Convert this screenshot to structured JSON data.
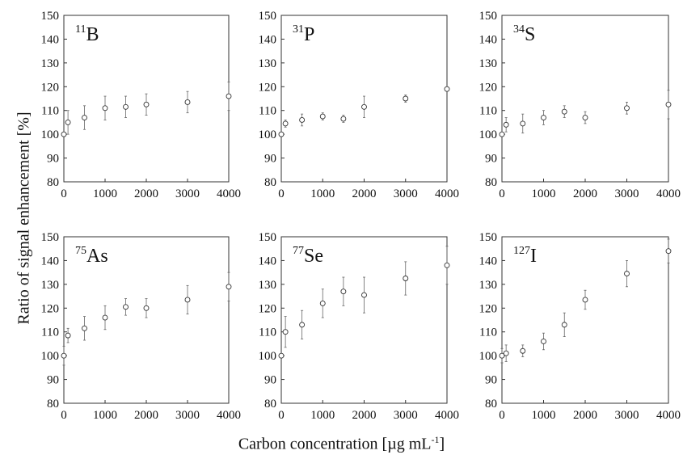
{
  "figure": {
    "ylabel": "Ratio of signal enhancement [%]",
    "xlabel_main": "Carbon concentration [µg mL",
    "xlabel_sup": "-1",
    "xlabel_end": "]"
  },
  "chart_data": [
    {
      "type": "scatter",
      "panel_label": {
        "mass": "11",
        "element": "B"
      },
      "xlim": [
        0,
        4000
      ],
      "ylim": [
        80,
        150
      ],
      "xticks": [
        "0",
        "1000",
        "2000",
        "3000",
        "4000"
      ],
      "yticks": [
        "80",
        "90",
        "100",
        "110",
        "120",
        "130",
        "140",
        "150"
      ],
      "x": [
        0,
        100,
        500,
        1000,
        1500,
        2000,
        3000,
        4000
      ],
      "y": [
        100,
        105,
        107,
        111,
        111.5,
        112.5,
        113.5,
        116
      ],
      "error": [
        0,
        5,
        5,
        5,
        4.5,
        4.5,
        4.5,
        6
      ],
      "grid": false
    },
    {
      "type": "scatter",
      "panel_label": {
        "mass": "31",
        "element": "P"
      },
      "xlim": [
        0,
        4000
      ],
      "ylim": [
        80,
        150
      ],
      "xticks": [
        "0",
        "1000",
        "2000",
        "3000",
        "4000"
      ],
      "yticks": [
        "80",
        "90",
        "100",
        "110",
        "120",
        "130",
        "140",
        "150"
      ],
      "x": [
        0,
        100,
        500,
        1000,
        1500,
        2000,
        3000,
        4000
      ],
      "y": [
        100,
        104.5,
        106,
        107.5,
        106.5,
        111.5,
        115,
        119
      ],
      "error": [
        0,
        1.5,
        2.5,
        1.5,
        1.5,
        4.5,
        1.5,
        0.5
      ],
      "grid": false
    },
    {
      "type": "scatter",
      "panel_label": {
        "mass": "34",
        "element": "S"
      },
      "xlim": [
        0,
        4000
      ],
      "ylim": [
        80,
        150
      ],
      "xticks": [
        "0",
        "1000",
        "2000",
        "3000",
        "4000"
      ],
      "yticks": [
        "80",
        "90",
        "100",
        "110",
        "120",
        "130",
        "140",
        "150"
      ],
      "x": [
        0,
        100,
        500,
        1000,
        1500,
        2000,
        3000,
        4000
      ],
      "y": [
        100,
        104,
        104.5,
        107,
        109.5,
        107,
        111,
        112.5
      ],
      "error": [
        0,
        3,
        4,
        3,
        2.5,
        2.5,
        2.5,
        6
      ],
      "grid": false
    },
    {
      "type": "scatter",
      "panel_label": {
        "mass": "75",
        "element": "As"
      },
      "xlim": [
        0,
        4000
      ],
      "ylim": [
        80,
        150
      ],
      "xticks": [
        "0",
        "1000",
        "2000",
        "3000",
        "4000"
      ],
      "yticks": [
        "80",
        "90",
        "100",
        "110",
        "120",
        "130",
        "140",
        "150"
      ],
      "x": [
        0,
        100,
        500,
        1000,
        1500,
        2000,
        3000,
        4000
      ],
      "y": [
        100,
        108.5,
        111.5,
        116,
        120.5,
        120,
        123.5,
        129
      ],
      "error": [
        4,
        3,
        5,
        5,
        3.5,
        4,
        6,
        6
      ],
      "grid": false
    },
    {
      "type": "scatter",
      "panel_label": {
        "mass": "77",
        "element": "Se"
      },
      "xlim": [
        0,
        4000
      ],
      "ylim": [
        80,
        150
      ],
      "xticks": [
        "0",
        "1000",
        "2000",
        "3000",
        "4000"
      ],
      "yticks": [
        "80",
        "90",
        "100",
        "110",
        "120",
        "130",
        "140",
        "150"
      ],
      "x": [
        0,
        100,
        500,
        1000,
        1500,
        2000,
        3000,
        4000
      ],
      "y": [
        100,
        110,
        113,
        122,
        127,
        125.5,
        132.5,
        138
      ],
      "error": [
        0,
        6.5,
        6,
        6,
        6,
        7.5,
        7,
        8
      ],
      "grid": false
    },
    {
      "type": "scatter",
      "panel_label": {
        "mass": "127",
        "element": "I"
      },
      "xlim": [
        0,
        4000
      ],
      "ylim": [
        80,
        150
      ],
      "xticks": [
        "0",
        "1000",
        "2000",
        "3000",
        "4000"
      ],
      "yticks": [
        "80",
        "90",
        "100",
        "110",
        "120",
        "130",
        "140",
        "150"
      ],
      "x": [
        0,
        100,
        500,
        1000,
        1500,
        2000,
        3000,
        4000
      ],
      "y": [
        100,
        101,
        102,
        106,
        113,
        123.5,
        134.5,
        144
      ],
      "error": [
        3,
        3.5,
        2.5,
        3.5,
        5,
        4,
        5.5,
        5
      ],
      "grid": false
    }
  ]
}
